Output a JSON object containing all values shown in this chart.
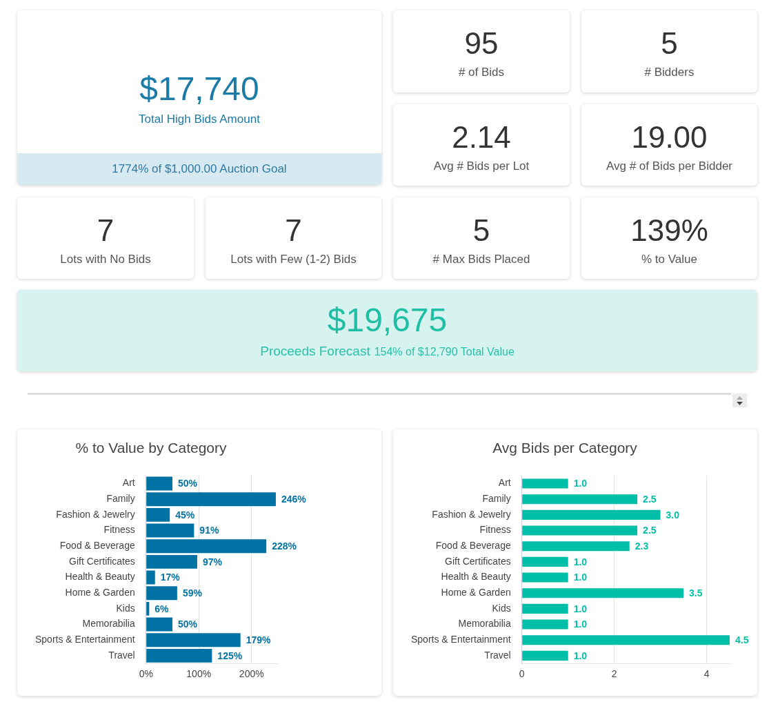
{
  "chart_data": [
    {
      "type": "other",
      "title": "$17,740",
      "subtitle": "Total High Bids Amount",
      "annotations": [
        "1774% of $1,000.00 Auction Goal"
      ],
      "color": "#1b7ba6"
    },
    {
      "type": "other",
      "title": "95",
      "subtitle": "# of Bids",
      "color": "#333333"
    },
    {
      "type": "other",
      "title": "5",
      "subtitle": "# Bidders",
      "color": "#333333"
    },
    {
      "type": "other",
      "title": "2.14",
      "subtitle": "Avg # Bids per Lot",
      "color": "#333333"
    },
    {
      "type": "other",
      "title": "19.00",
      "subtitle": "Avg # of Bids per Bidder",
      "color": "#333333"
    },
    {
      "type": "other",
      "title": "7",
      "subtitle": "Lots with No Bids",
      "color": "#333333"
    },
    {
      "type": "other",
      "title": "7",
      "subtitle": "Lots with Few (1-2) Bids",
      "color": "#333333"
    },
    {
      "type": "other",
      "title": "5",
      "subtitle": "# Max Bids Placed",
      "color": "#333333"
    },
    {
      "type": "other",
      "title": "139%",
      "subtitle": "% to Value",
      "color": "#333333"
    },
    {
      "type": "other",
      "title": "$19,675",
      "subtitle": "Proceeds Forecast",
      "annotations": [
        "154% of $12,790 Total Value"
      ],
      "color": "#1ebfa5"
    },
    {
      "type": "bar",
      "orientation": "horizontal",
      "title": "% to Value by Category",
      "categories": [
        "Art",
        "Family",
        "Fashion & Jewelry",
        "Fitness",
        "Food & Beverage",
        "Gift Certificates",
        "Health & Beauty",
        "Home & Garden",
        "Kids",
        "Memorabilia",
        "Sports & Entertainment",
        "Travel"
      ],
      "values": [
        50,
        246,
        45,
        91,
        228,
        97,
        17,
        59,
        6,
        50,
        179,
        125
      ],
      "value_labels": [
        "50%",
        "246%",
        "45%",
        "91%",
        "228%",
        "97%",
        "17%",
        "59%",
        "6%",
        "50%",
        "179%",
        "125%"
      ],
      "color": "#0072a3",
      "xlim": [
        0,
        250
      ],
      "xticks": [
        {
          "value": 0,
          "label": "0%"
        },
        {
          "value": 100,
          "label": "100%"
        },
        {
          "value": 200,
          "label": "200%"
        }
      ],
      "grid": "x"
    },
    {
      "type": "bar",
      "orientation": "horizontal",
      "title": "Avg Bids per Category",
      "categories": [
        "Art",
        "Family",
        "Fashion & Jewelry",
        "Fitness",
        "Food & Beverage",
        "Gift Certificates",
        "Health & Beauty",
        "Home & Garden",
        "Kids",
        "Memorabilia",
        "Sports & Entertainment",
        "Travel"
      ],
      "values": [
        1,
        2.5,
        3,
        2.5,
        2.33,
        1,
        1,
        3.5,
        1,
        1,
        4.5,
        1
      ],
      "value_labels": [
        "1.0",
        "2.5",
        "3.0",
        "2.5",
        "2.3",
        "1.0",
        "1.0",
        "3.5",
        "1.0",
        "1.0",
        "4.5",
        "1.0"
      ],
      "color": "#00bfa8",
      "xlim": [
        0,
        4.5
      ],
      "xticks": [
        0,
        2,
        4
      ],
      "grid": "x"
    }
  ]
}
